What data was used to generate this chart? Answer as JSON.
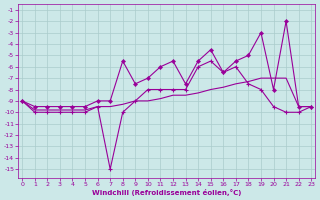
{
  "xlabel": "Windchill (Refroidissement éolien,°C)",
  "xlim": [
    -0.3,
    23.3
  ],
  "ylim": [
    -15.8,
    -0.5
  ],
  "ytick_vals": [
    -1,
    -2,
    -3,
    -4,
    -5,
    -6,
    -7,
    -8,
    -9,
    -10,
    -11,
    -12,
    -13,
    -14,
    -15
  ],
  "xtick_vals": [
    0,
    1,
    2,
    3,
    4,
    5,
    6,
    7,
    8,
    9,
    10,
    11,
    12,
    13,
    14,
    15,
    16,
    17,
    18,
    19,
    20,
    21,
    22,
    23
  ],
  "bg_color": "#cce8e8",
  "grid_color": "#aacccc",
  "line_color": "#990099",
  "hours": [
    0,
    1,
    2,
    3,
    4,
    5,
    6,
    7,
    8,
    9,
    10,
    11,
    12,
    13,
    14,
    15,
    16,
    17,
    18,
    19,
    20,
    21,
    22,
    23
  ],
  "line_rising": [
    -9.0,
    -9.5,
    -9.5,
    -9.5,
    -9.5,
    -9.5,
    -9.0,
    -9.0,
    -5.5,
    -7.5,
    -7.0,
    -6.0,
    -5.5,
    -7.5,
    -5.5,
    -4.5,
    -6.5,
    -5.5,
    -5.0,
    -3.0,
    -8.0,
    -2.0,
    -9.5,
    -9.5
  ],
  "line_dip": [
    -9.0,
    -10.0,
    -10.0,
    -10.0,
    -10.0,
    -10.0,
    -9.5,
    -15.0,
    -10.0,
    -9.0,
    -8.0,
    -8.0,
    -8.0,
    -8.0,
    -6.0,
    -5.5,
    -6.5,
    -6.0,
    -7.5,
    -8.0,
    -9.5,
    -10.0,
    -10.0,
    -9.5
  ],
  "line_flat": [
    -9.0,
    -9.8,
    -9.8,
    -9.8,
    -9.8,
    -9.8,
    -9.5,
    -9.5,
    -9.3,
    -9.0,
    -9.0,
    -8.8,
    -8.5,
    -8.5,
    -8.3,
    -8.0,
    -7.8,
    -7.5,
    -7.3,
    -7.0,
    -7.0,
    -7.0,
    -9.5,
    -9.5
  ]
}
